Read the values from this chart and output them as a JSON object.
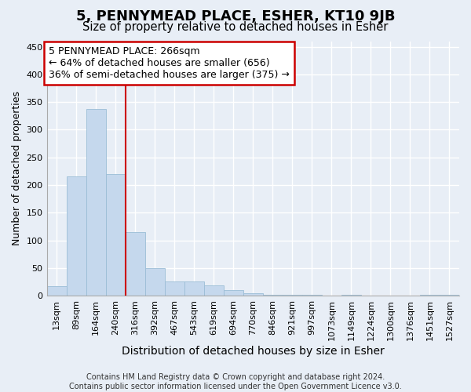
{
  "title": "5, PENNYMEAD PLACE, ESHER, KT10 9JB",
  "subtitle": "Size of property relative to detached houses in Esher",
  "xlabel": "Distribution of detached houses by size in Esher",
  "ylabel": "Number of detached properties",
  "bar_color": "#c5d8ed",
  "bar_edge_color": "#9bbdd6",
  "background_color": "#e8eef6",
  "grid_color": "#ffffff",
  "categories": [
    "13sqm",
    "89sqm",
    "164sqm",
    "240sqm",
    "316sqm",
    "392sqm",
    "467sqm",
    "543sqm",
    "619sqm",
    "694sqm",
    "770sqm",
    "846sqm",
    "921sqm",
    "997sqm",
    "1073sqm",
    "1149sqm",
    "1224sqm",
    "1300sqm",
    "1376sqm",
    "1451sqm",
    "1527sqm"
  ],
  "values": [
    17,
    215,
    338,
    220,
    115,
    50,
    26,
    25,
    19,
    10,
    5,
    2,
    1,
    1,
    0,
    2,
    0,
    0,
    0,
    1,
    1
  ],
  "annotation_text": "5 PENNYMEAD PLACE: 266sqm\n← 64% of detached houses are smaller (656)\n36% of semi-detached houses are larger (375) →",
  "annotation_box_color": "#ffffff",
  "annotation_box_edge_color": "#cc0000",
  "vline_color": "#cc0000",
  "vline_x": 3.5,
  "ylim": [
    0,
    460
  ],
  "yticks": [
    0,
    50,
    100,
    150,
    200,
    250,
    300,
    350,
    400,
    450
  ],
  "footnote": "Contains HM Land Registry data © Crown copyright and database right 2024.\nContains public sector information licensed under the Open Government Licence v3.0.",
  "title_fontsize": 13,
  "subtitle_fontsize": 10.5,
  "annotation_fontsize": 9,
  "tick_fontsize": 8,
  "ylabel_fontsize": 9,
  "xlabel_fontsize": 10,
  "footnote_fontsize": 7
}
